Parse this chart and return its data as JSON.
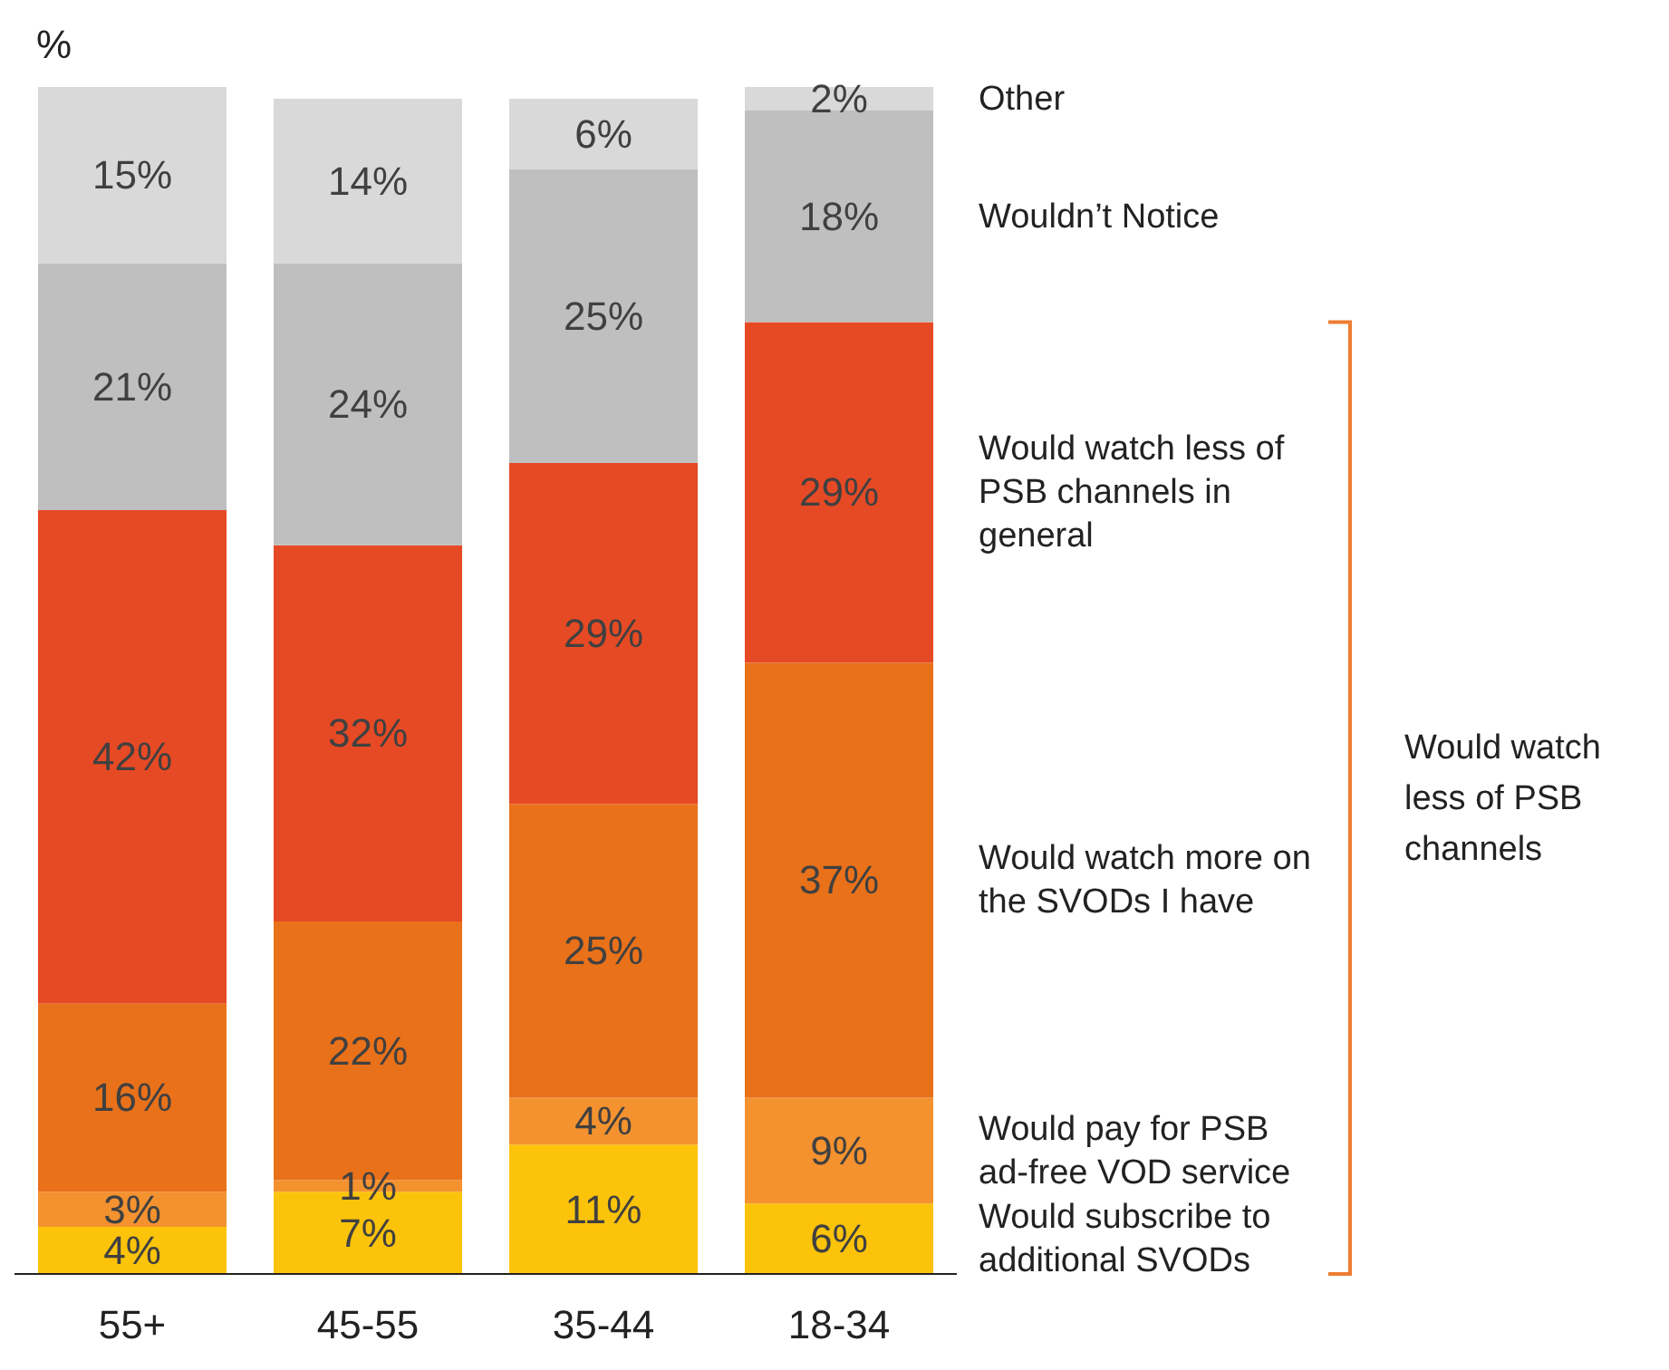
{
  "chart_data": {
    "type": "bar",
    "stacked": true,
    "ylabel": "%",
    "categories": [
      "55+",
      "45-55",
      "35-44",
      "18-34"
    ],
    "series": [
      {
        "name": "Would subscribe to additional SVODs",
        "color": "#fcc30b",
        "values": [
          4,
          7,
          11,
          6
        ],
        "value_labels": [
          "4%",
          "7%",
          "11%",
          "6%"
        ]
      },
      {
        "name": "Would pay for PSB ad-free VOD service",
        "color": "#f4922f",
        "values": [
          3,
          1,
          4,
          9
        ],
        "value_labels": [
          "3%",
          "1%",
          "4%",
          "9%"
        ]
      },
      {
        "name": "Would watch more on the SVODs I have",
        "color": "#e8711a",
        "values": [
          16,
          22,
          25,
          37
        ],
        "value_labels": [
          "16%",
          "22%",
          "25%",
          "37%"
        ]
      },
      {
        "name": "Would watch less of PSB channels in general",
        "color": "#e64a25",
        "values": [
          42,
          32,
          29,
          29
        ],
        "value_labels": [
          "42%",
          "32%",
          "29%",
          "29%"
        ]
      },
      {
        "name": "Wouldn’t Notice",
        "color": "#bfbfbf",
        "values": [
          21,
          24,
          25,
          18
        ],
        "value_labels": [
          "21%",
          "24%",
          "25%",
          "18%"
        ]
      },
      {
        "name": "Other",
        "color": "#d9d9d9",
        "values": [
          15,
          14,
          6,
          2
        ],
        "value_labels": [
          "15%",
          "14%",
          "6%",
          "2%"
        ]
      }
    ],
    "annotations": [
      "Would watch less of PSB channels"
    ]
  }
}
